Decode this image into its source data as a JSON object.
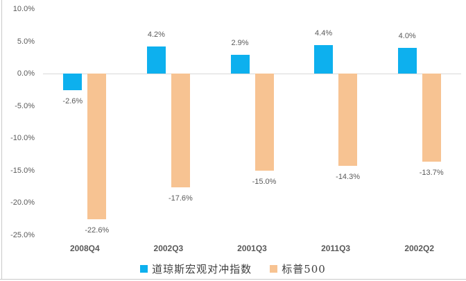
{
  "chart_data": {
    "type": "bar",
    "title": "",
    "xlabel": "",
    "ylabel": "",
    "categories": [
      "2008Q4",
      "2002Q3",
      "2001Q3",
      "2011Q3",
      "2002Q2"
    ],
    "series": [
      {
        "name": "道琼斯宏观对冲指数",
        "color": "#0db0ee",
        "values": [
          -2.6,
          4.2,
          2.9,
          4.4,
          4.0
        ],
        "labels": [
          "-2.6%",
          "4.2%",
          "2.9%",
          "4.4%",
          "4.0%"
        ]
      },
      {
        "name": "标普500",
        "color": "#f7c392",
        "values": [
          -22.6,
          -17.6,
          -15.0,
          -14.3,
          -13.7
        ],
        "labels": [
          "-22.6%",
          "-17.6%",
          "-15.0%",
          "-14.3%",
          "-13.7%"
        ]
      }
    ],
    "yticks": [
      {
        "label": "10.0%",
        "value": 10
      },
      {
        "label": "5.0%",
        "value": 5
      },
      {
        "label": "0.0%",
        "value": 0
      },
      {
        "label": "-5.0%",
        "value": -5
      },
      {
        "label": "-10.0%",
        "value": -10
      },
      {
        "label": "-15.0%",
        "value": -15
      },
      {
        "label": "-20.0%",
        "value": -20
      },
      {
        "label": "-25.0%",
        "value": -25
      }
    ],
    "ylim": [
      -25,
      10
    ],
    "grid": false,
    "legend_position": "bottom",
    "axis_line_color": "#d9d9d9",
    "text_color": "#595959"
  }
}
